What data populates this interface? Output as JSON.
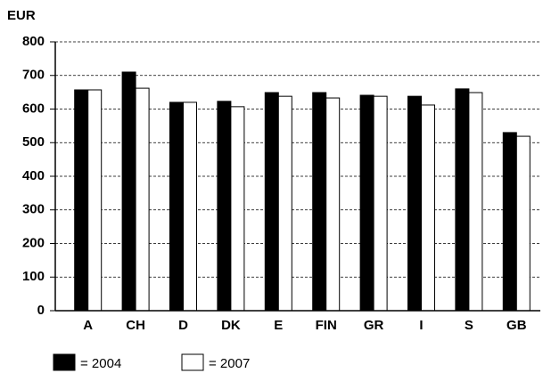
{
  "chart_data": {
    "type": "bar",
    "y_label": "EUR",
    "categories": [
      "A",
      "CH",
      "D",
      "DK",
      "E",
      "FIN",
      "GR",
      "I",
      "S",
      "GB"
    ],
    "series": [
      {
        "name": "= 2004",
        "color": "#000000",
        "values": [
          657,
          710,
          620,
          623,
          649,
          649,
          641,
          638,
          660,
          530
        ]
      },
      {
        "name": "= 2007",
        "color": "#ffffff",
        "values": [
          657,
          662,
          620,
          607,
          638,
          633,
          638,
          612,
          649,
          519
        ]
      }
    ],
    "ylim": [
      0,
      800
    ],
    "yticks": [
      0,
      100,
      200,
      300,
      400,
      500,
      600,
      700,
      800
    ],
    "grid": true
  }
}
